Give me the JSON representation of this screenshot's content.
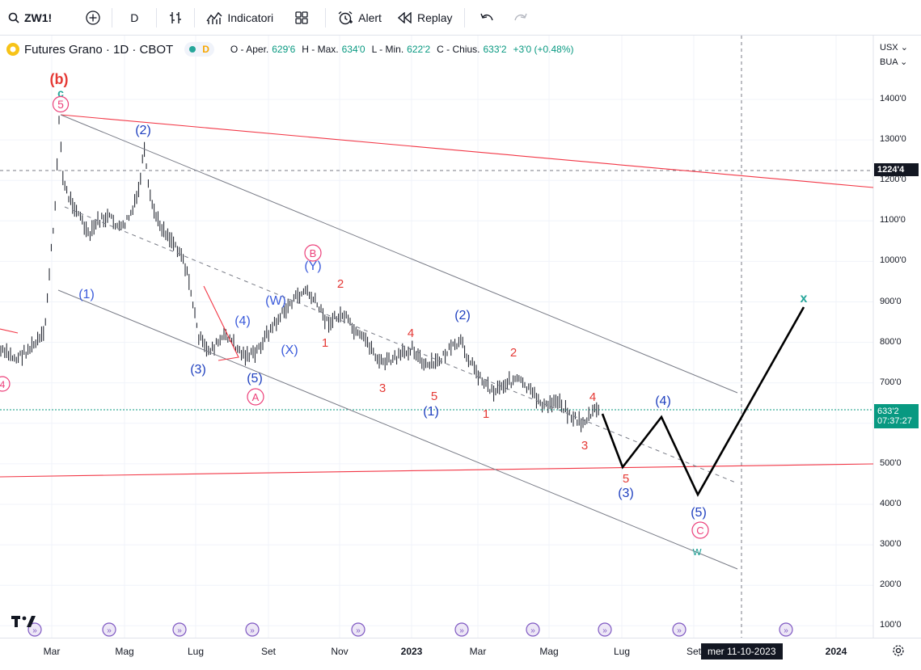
{
  "toolbar": {
    "symbol": "ZW1!",
    "interval": "D",
    "indicators_label": "Indicatori",
    "alert_label": "Alert",
    "replay_label": "Replay"
  },
  "legend": {
    "title": "Futures Grano · 1D · CBOT",
    "status_letter": "D",
    "open_label": "O - Aper.",
    "open": "629'6",
    "high_label": "H - Max.",
    "high": "634'0",
    "low_label": "L - Min.",
    "low": "622'2",
    "close_label": "C - Chius.",
    "close": "633'2",
    "change": "+3'0 (+0.48%)"
  },
  "price_axis": {
    "currency": "USX",
    "scale": "BUA",
    "labels": [
      "1400'0",
      "1300'0",
      "1200'0",
      "1100'0",
      "1000'0",
      "900'0",
      "800'0",
      "700'0",
      "600'0",
      "500'0",
      "400'0",
      "300'0",
      "200'0",
      "100'0"
    ],
    "crosshair_price": "1224'4",
    "last_price": "633'2",
    "countdown": "07:37:27"
  },
  "time_axis": {
    "labels": [
      "Mar",
      "Mag",
      "Lug",
      "Set",
      "Nov",
      "2023",
      "Mar",
      "Mag",
      "Lug",
      "Set",
      "2024"
    ],
    "crosshair_date": "mer 11-10-2023"
  },
  "colors": {
    "red_wave": "#e53935",
    "blue_wave": "#1e3fbf",
    "teal_wave": "#26a69a",
    "pink_circle": "#ec407a",
    "bar": "#131722",
    "channel": "#787b86",
    "accent": "#2962ff"
  },
  "wave_labels": {
    "b_top": "(b)",
    "c_top": "c",
    "five_top": "5",
    "w2_a": "(2)",
    "w1_a": "(1)",
    "w3_a": "(3)",
    "w4_a": "(4)",
    "w5_a": "(5)",
    "A": "A",
    "W": "(W)",
    "X": "(X)",
    "Y": "(Y)",
    "B": "B",
    "r2a": "2",
    "r1a": "1",
    "r4a": "4",
    "r3a": "3",
    "r5a": "5",
    "w1_b": "(1)",
    "w2_b": "(2)",
    "r2b": "2",
    "r1b": "1",
    "r4b": "4",
    "r3b": "3",
    "r5_proj": "5",
    "w3_proj": "(3)",
    "w4_proj": "(4)",
    "w5_proj": "(5)",
    "C": "C",
    "w_low": "w",
    "x_high": "x",
    "left_4": "4"
  }
}
